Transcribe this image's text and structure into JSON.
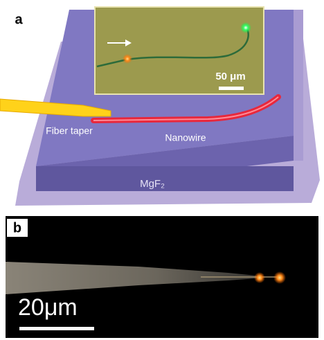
{
  "panel_a": {
    "label": "a",
    "fiber_label": "Fiber taper",
    "nanowire_label": "Nanowire",
    "substrate_label": "MgF₂",
    "inset_scale": "50 μm"
  },
  "panel_b": {
    "label": "b",
    "scale": "20μm"
  }
}
